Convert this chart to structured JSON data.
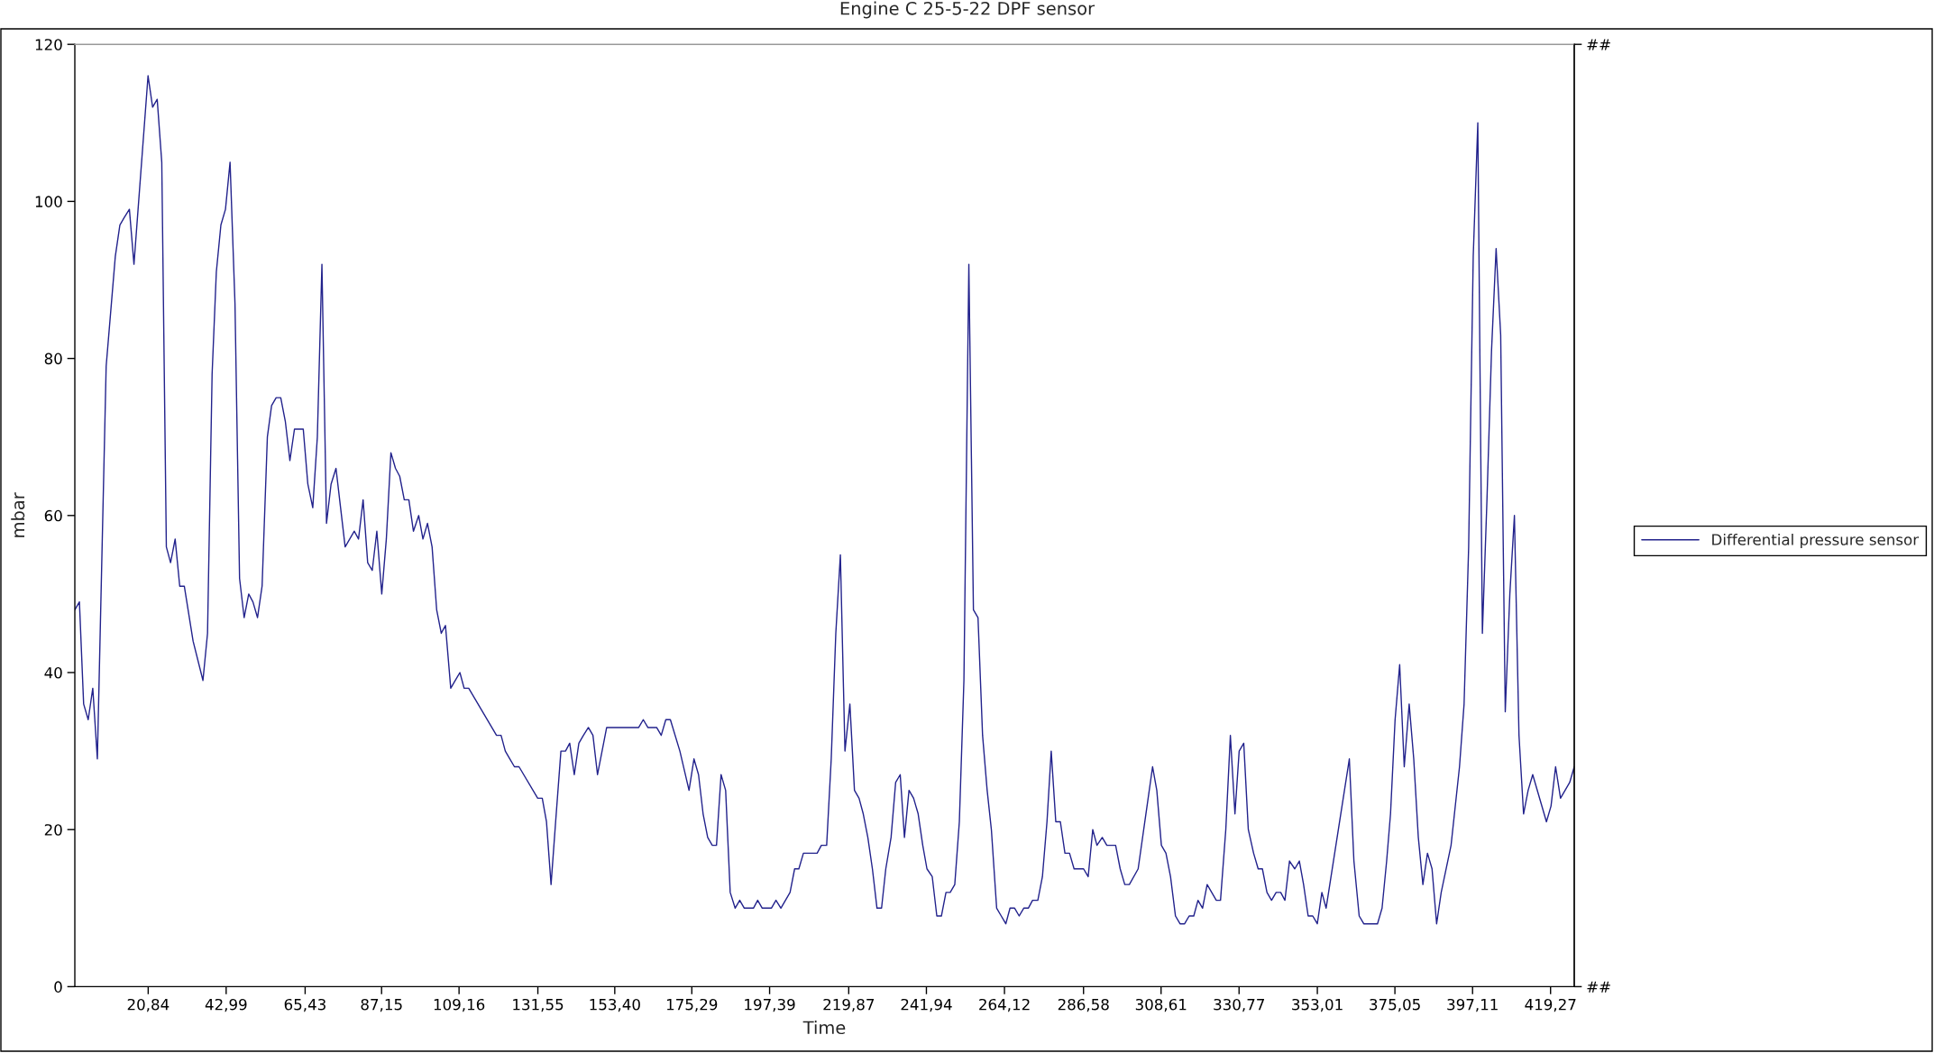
{
  "chart_data": {
    "type": "line",
    "title": "Engine C 25-5-22 DPF sensor",
    "xlabel": "Time",
    "ylabel": "mbar",
    "x": [
      0.0,
      1.3,
      2.5,
      3.8,
      5.1,
      6.4,
      8.9,
      11.5,
      12.8,
      14.1,
      15.5,
      16.8,
      20.8,
      22.1,
      23.4,
      24.7,
      26.0,
      27.2,
      28.5,
      29.8,
      31.1,
      33.6,
      36.4,
      37.7,
      39.0,
      40.2,
      41.5,
      42.8,
      44.1,
      45.5,
      46.8,
      48.1,
      49.4,
      50.6,
      51.9,
      53.2,
      54.7,
      55.9,
      57.2,
      58.5,
      59.8,
      61.1,
      62.4,
      64.9,
      66.2,
      67.6,
      68.9,
      70.2,
      71.5,
      72.8,
      74.2,
      75.5,
      76.8,
      78.1,
      79.4,
      80.6,
      81.9,
      83.2,
      84.5,
      85.8,
      87.2,
      88.5,
      89.8,
      91.1,
      92.3,
      93.6,
      94.9,
      96.2,
      97.7,
      98.9,
      100.2,
      101.5,
      102.8,
      104.1,
      105.3,
      106.8,
      108.1,
      109.4,
      110.6,
      111.9,
      119.8,
      121.1,
      122.3,
      123.6,
      124.9,
      126.2,
      131.5,
      132.8,
      134.0,
      135.3,
      136.6,
      138.1,
      139.4,
      140.6,
      141.9,
      143.2,
      144.5,
      145.9,
      147.2,
      148.5,
      151.1,
      160.2,
      161.5,
      162.8,
      165.3,
      166.6,
      167.9,
      169.2,
      171.9,
      174.5,
      175.9,
      177.2,
      178.5,
      179.8,
      181.1,
      182.3,
      183.6,
      184.9,
      186.2,
      187.6,
      188.9,
      190.2,
      192.8,
      194.0,
      195.3,
      197.9,
      199.2,
      200.6,
      203.2,
      204.5,
      205.7,
      207.0,
      210.9,
      212.1,
      213.6,
      214.9,
      216.2,
      217.5,
      218.8,
      220.2,
      221.5,
      222.8,
      224.0,
      225.3,
      226.6,
      227.9,
      229.2,
      230.4,
      231.9,
      233.2,
      234.5,
      235.7,
      237.0,
      238.3,
      239.6,
      240.9,
      242.1,
      243.6,
      244.9,
      246.2,
      247.5,
      248.7,
      250.0,
      251.3,
      252.6,
      254.0,
      255.3,
      256.6,
      257.9,
      259.2,
      260.4,
      261.9,
      263.2,
      264.5,
      265.7,
      267.0,
      268.3,
      269.6,
      270.9,
      272.1,
      273.6,
      274.9,
      276.2,
      277.4,
      278.7,
      280.0,
      281.3,
      282.6,
      283.9,
      286.6,
      287.9,
      289.2,
      290.4,
      291.9,
      293.2,
      295.7,
      297.0,
      298.3,
      299.6,
      302.1,
      306.2,
      307.4,
      308.7,
      310.0,
      311.3,
      312.7,
      314.0,
      315.3,
      316.6,
      317.9,
      319.1,
      320.4,
      321.7,
      323.0,
      324.3,
      325.5,
      327.0,
      328.3,
      329.6,
      330.8,
      332.1,
      333.4,
      334.9,
      336.2,
      337.4,
      338.7,
      340.0,
      341.3,
      342.6,
      343.8,
      345.1,
      346.6,
      347.9,
      349.1,
      350.4,
      351.7,
      353.0,
      354.3,
      355.5,
      362.1,
      363.4,
      364.9,
      366.2,
      370.1,
      371.4,
      372.7,
      373.8,
      375.1,
      376.4,
      377.7,
      379.1,
      380.4,
      381.7,
      383.0,
      384.3,
      385.6,
      386.9,
      388.2,
      391.0,
      393.4,
      394.7,
      396.0,
      397.3,
      398.6,
      399.9,
      401.2,
      402.5,
      403.8,
      405.1,
      406.4,
      407.7,
      409.0,
      410.3,
      411.6,
      412.9,
      414.2,
      418.1,
      419.4,
      420.7,
      422.1,
      424.7,
      426.0
    ],
    "series": [
      {
        "name": "Differential pressure sensor",
        "color": "#22228c",
        "values": [
          48,
          49,
          36,
          34,
          38,
          29,
          79,
          93,
          97,
          98,
          99,
          92,
          116,
          112,
          113,
          105,
          56,
          54,
          57,
          51,
          51,
          44,
          39,
          45,
          78,
          91,
          97,
          99,
          105,
          87,
          52,
          47,
          50,
          49,
          47,
          51,
          70,
          74,
          75,
          75,
          72,
          67,
          71,
          71,
          64,
          61,
          70,
          92,
          59,
          64,
          66,
          61,
          56,
          57,
          58,
          57,
          62,
          54,
          53,
          58,
          50,
          57,
          68,
          66,
          65,
          62,
          62,
          58,
          60,
          57,
          59,
          56,
          48,
          45,
          46,
          38,
          39,
          40,
          38,
          38,
          32,
          32,
          30,
          29,
          28,
          28,
          24,
          24,
          21,
          13,
          21,
          30,
          30,
          31,
          27,
          31,
          32,
          33,
          32,
          27,
          33,
          33,
          34,
          33,
          33,
          32,
          34,
          34,
          30,
          25,
          29,
          27,
          22,
          19,
          18,
          18,
          27,
          25,
          12,
          10,
          11,
          10,
          10,
          11,
          10,
          10,
          11,
          10,
          12,
          15,
          15,
          17,
          17,
          18,
          18,
          29,
          45,
          55,
          30,
          36,
          25,
          24,
          22,
          19,
          15,
          10,
          10,
          15,
          19,
          26,
          27,
          19,
          25,
          24,
          22,
          18,
          15,
          14,
          9,
          9,
          12,
          12,
          13,
          21,
          39,
          92,
          48,
          47,
          32,
          25,
          20,
          10,
          9,
          8,
          10,
          10,
          9,
          10,
          10,
          11,
          11,
          14,
          21,
          30,
          21,
          21,
          17,
          17,
          15,
          15,
          14,
          20,
          18,
          19,
          18,
          18,
          15,
          13,
          13,
          15,
          28,
          25,
          18,
          17,
          14,
          9,
          8,
          8,
          9,
          9,
          11,
          10,
          13,
          12,
          11,
          11,
          20,
          32,
          22,
          30,
          31,
          20,
          17,
          15,
          15,
          12,
          11,
          12,
          12,
          11,
          16,
          15,
          16,
          13,
          9,
          9,
          8,
          12,
          10,
          29,
          16,
          9,
          8,
          8,
          10,
          16,
          22,
          34,
          41,
          28,
          36,
          29,
          19,
          13,
          17,
          15,
          8,
          12,
          18,
          28,
          36,
          56,
          93,
          110,
          45,
          62,
          81,
          94,
          83,
          35,
          50,
          60,
          32,
          22,
          25,
          27,
          21,
          23,
          28,
          24,
          26,
          28
        ]
      }
    ],
    "xlim": [
      0,
      426
    ],
    "xticks": [
      {
        "value": 20.84,
        "label": "20,84"
      },
      {
        "value": 42.99,
        "label": "42,99"
      },
      {
        "value": 65.43,
        "label": "65,43"
      },
      {
        "value": 87.15,
        "label": "87,15"
      },
      {
        "value": 109.16,
        "label": "109,16"
      },
      {
        "value": 131.55,
        "label": "131,55"
      },
      {
        "value": 153.4,
        "label": "153,40"
      },
      {
        "value": 175.29,
        "label": "175,29"
      },
      {
        "value": 197.39,
        "label": "197,39"
      },
      {
        "value": 219.87,
        "label": "219,87"
      },
      {
        "value": 241.94,
        "label": "241,94"
      },
      {
        "value": 264.12,
        "label": "264,12"
      },
      {
        "value": 286.58,
        "label": "286,58"
      },
      {
        "value": 308.61,
        "label": "308,61"
      },
      {
        "value": 330.77,
        "label": "330,77"
      },
      {
        "value": 353.01,
        "label": "353,01"
      },
      {
        "value": 375.05,
        "label": "375,05"
      },
      {
        "value": 397.11,
        "label": "397,11"
      },
      {
        "value": 419.27,
        "label": "419,27"
      }
    ],
    "ylim": [
      0,
      120
    ],
    "yticks": [
      0,
      20,
      40,
      60,
      80,
      100,
      120
    ],
    "annotations": [
      "##",
      "##"
    ],
    "legend": "right"
  }
}
